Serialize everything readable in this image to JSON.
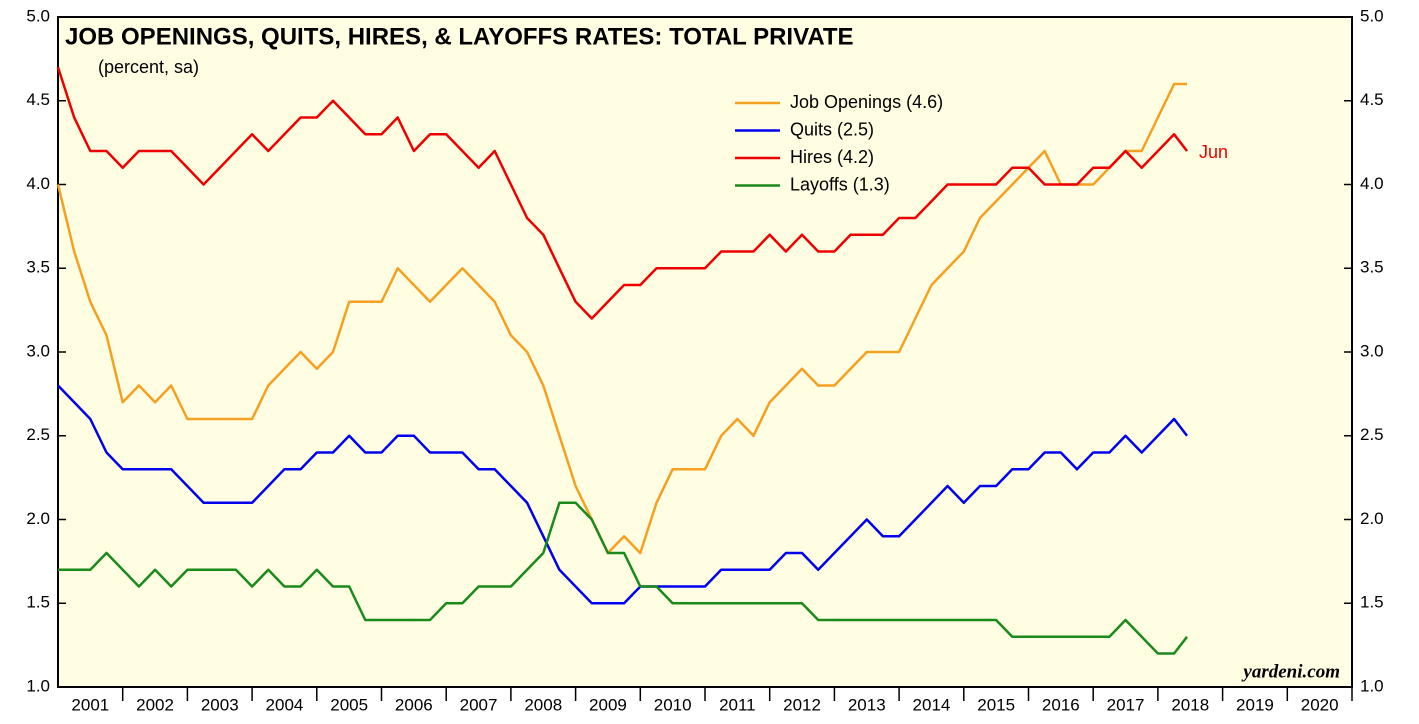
{
  "chart_data": {
    "type": "line",
    "title": "JOB OPENINGS, QUITS, HIRES, & LAYOFFS RATES: TOTAL PRIVATE",
    "subtitle": "(percent, sa)",
    "annotation": "Jun",
    "source": "yardeni.com",
    "legend": "top-right",
    "grid": false,
    "xlim": [
      2001,
      2021
    ],
    "xticks": [
      {
        "value": 2001.5,
        "label": "2001"
      },
      {
        "value": 2002.5,
        "label": "2002"
      },
      {
        "value": 2003.5,
        "label": "2003"
      },
      {
        "value": 2004.5,
        "label": "2004"
      },
      {
        "value": 2005.5,
        "label": "2005"
      },
      {
        "value": 2006.5,
        "label": "2006"
      },
      {
        "value": 2007.5,
        "label": "2007"
      },
      {
        "value": 2008.5,
        "label": "2008"
      },
      {
        "value": 2009.5,
        "label": "2009"
      },
      {
        "value": 2010.5,
        "label": "2010"
      },
      {
        "value": 2011.5,
        "label": "2011"
      },
      {
        "value": 2012.5,
        "label": "2012"
      },
      {
        "value": 2013.5,
        "label": "2013"
      },
      {
        "value": 2014.5,
        "label": "2014"
      },
      {
        "value": 2015.5,
        "label": "2015"
      },
      {
        "value": 2016.5,
        "label": "2016"
      },
      {
        "value": 2017.5,
        "label": "2017"
      },
      {
        "value": 2018.5,
        "label": "2018"
      },
      {
        "value": 2019.5,
        "label": "2019"
      },
      {
        "value": 2020.5,
        "label": "2020"
      }
    ],
    "ylim": [
      1.0,
      5.0
    ],
    "yticks": [
      {
        "value": 1.0,
        "label": "1.0"
      },
      {
        "value": 1.5,
        "label": "1.5"
      },
      {
        "value": 2.0,
        "label": "2.0"
      },
      {
        "value": 2.5,
        "label": "2.5"
      },
      {
        "value": 3.0,
        "label": "3.0"
      },
      {
        "value": 3.5,
        "label": "3.5"
      },
      {
        "value": 4.0,
        "label": "4.0"
      },
      {
        "value": 4.5,
        "label": "4.5"
      },
      {
        "value": 5.0,
        "label": "5.0"
      }
    ],
    "x": [
      2001,
      2001.25,
      2001.5,
      2001.75,
      2002,
      2002.25,
      2002.5,
      2002.75,
      2003,
      2003.25,
      2003.5,
      2003.75,
      2004,
      2004.25,
      2004.5,
      2004.75,
      2005,
      2005.25,
      2005.5,
      2005.75,
      2006,
      2006.25,
      2006.5,
      2006.75,
      2007,
      2007.25,
      2007.5,
      2007.75,
      2008,
      2008.25,
      2008.5,
      2008.75,
      2009,
      2009.25,
      2009.5,
      2009.75,
      2010,
      2010.25,
      2010.5,
      2010.75,
      2011,
      2011.25,
      2011.5,
      2011.75,
      2012,
      2012.25,
      2012.5,
      2012.75,
      2013,
      2013.25,
      2013.5,
      2013.75,
      2014,
      2014.25,
      2014.5,
      2014.75,
      2015,
      2015.25,
      2015.5,
      2015.75,
      2016,
      2016.25,
      2016.5,
      2016.75,
      2017,
      2017.25,
      2017.5,
      2017.75,
      2018,
      2018.25,
      2018.45
    ],
    "series": [
      {
        "name": "Job Openings (4.6)",
        "color": "#f5a020",
        "values": [
          4.0,
          3.6,
          3.3,
          3.1,
          2.7,
          2.8,
          2.7,
          2.8,
          2.6,
          2.6,
          2.6,
          2.6,
          2.6,
          2.8,
          2.9,
          3.0,
          2.9,
          3.0,
          3.3,
          3.3,
          3.3,
          3.5,
          3.4,
          3.3,
          3.4,
          3.5,
          3.4,
          3.3,
          3.1,
          3.0,
          2.8,
          2.5,
          2.2,
          2.0,
          1.8,
          1.9,
          1.8,
          2.1,
          2.3,
          2.3,
          2.3,
          2.5,
          2.6,
          2.5,
          2.7,
          2.8,
          2.9,
          2.8,
          2.8,
          2.9,
          3.0,
          3.0,
          3.0,
          3.2,
          3.4,
          3.5,
          3.6,
          3.8,
          3.9,
          4.0,
          4.1,
          4.2,
          4.0,
          4.0,
          4.0,
          4.1,
          4.2,
          4.2,
          4.4,
          4.6,
          4.6
        ]
      },
      {
        "name": "Quits (2.5)",
        "color": "#0000ee",
        "values": [
          2.8,
          2.7,
          2.6,
          2.4,
          2.3,
          2.3,
          2.3,
          2.3,
          2.2,
          2.1,
          2.1,
          2.1,
          2.1,
          2.2,
          2.3,
          2.3,
          2.4,
          2.4,
          2.5,
          2.4,
          2.4,
          2.5,
          2.5,
          2.4,
          2.4,
          2.4,
          2.3,
          2.3,
          2.2,
          2.1,
          1.9,
          1.7,
          1.6,
          1.5,
          1.5,
          1.5,
          1.6,
          1.6,
          1.6,
          1.6,
          1.6,
          1.7,
          1.7,
          1.7,
          1.7,
          1.8,
          1.8,
          1.7,
          1.8,
          1.9,
          2.0,
          1.9,
          1.9,
          2.0,
          2.1,
          2.2,
          2.1,
          2.2,
          2.2,
          2.3,
          2.3,
          2.4,
          2.4,
          2.3,
          2.4,
          2.4,
          2.5,
          2.4,
          2.5,
          2.6,
          2.5
        ]
      },
      {
        "name": "Hires (4.2)",
        "color": "#ee0000",
        "values": [
          4.7,
          4.4,
          4.2,
          4.2,
          4.1,
          4.2,
          4.2,
          4.2,
          4.1,
          4.0,
          4.1,
          4.2,
          4.3,
          4.2,
          4.3,
          4.4,
          4.4,
          4.5,
          4.4,
          4.3,
          4.3,
          4.4,
          4.2,
          4.3,
          4.3,
          4.2,
          4.1,
          4.2,
          4.0,
          3.8,
          3.7,
          3.5,
          3.3,
          3.2,
          3.3,
          3.4,
          3.4,
          3.5,
          3.5,
          3.5,
          3.5,
          3.6,
          3.6,
          3.6,
          3.7,
          3.6,
          3.7,
          3.6,
          3.6,
          3.7,
          3.7,
          3.7,
          3.8,
          3.8,
          3.9,
          4.0,
          4.0,
          4.0,
          4.0,
          4.1,
          4.1,
          4.0,
          4.0,
          4.0,
          4.1,
          4.1,
          4.2,
          4.1,
          4.2,
          4.3,
          4.2
        ]
      },
      {
        "name": "Layoffs (1.3)",
        "color": "#1a8a1a",
        "values": [
          1.7,
          1.7,
          1.7,
          1.8,
          1.7,
          1.6,
          1.7,
          1.6,
          1.7,
          1.7,
          1.7,
          1.7,
          1.6,
          1.7,
          1.6,
          1.6,
          1.7,
          1.6,
          1.6,
          1.4,
          1.4,
          1.4,
          1.4,
          1.4,
          1.5,
          1.5,
          1.6,
          1.6,
          1.6,
          1.7,
          1.8,
          2.1,
          2.1,
          2.0,
          1.8,
          1.8,
          1.6,
          1.6,
          1.5,
          1.5,
          1.5,
          1.5,
          1.5,
          1.5,
          1.5,
          1.5,
          1.5,
          1.4,
          1.4,
          1.4,
          1.4,
          1.4,
          1.4,
          1.4,
          1.4,
          1.4,
          1.4,
          1.4,
          1.4,
          1.3,
          1.3,
          1.3,
          1.3,
          1.3,
          1.3,
          1.3,
          1.4,
          1.3,
          1.2,
          1.2,
          1.3
        ]
      }
    ]
  }
}
